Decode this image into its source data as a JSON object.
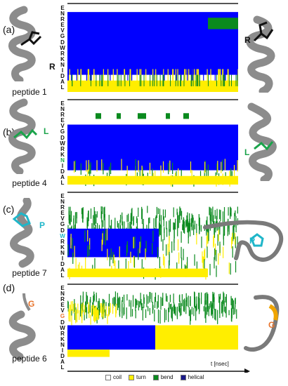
{
  "residues": [
    "E",
    "N",
    "R",
    "E",
    "V",
    "G",
    "D",
    "W",
    "R",
    "K",
    "N",
    "I",
    "D",
    "A",
    "L"
  ],
  "colors": {
    "coil": "#ffffff",
    "turn": "#ffee00",
    "bend": "#0a8a1e",
    "helical": "#0000ff",
    "helix_gray": "#8c8c8c"
  },
  "panels": [
    {
      "letter": "(a)",
      "peptide": "peptide 1",
      "mutation": "R",
      "mutation_color": "#111111",
      "highlight_index": 8
    },
    {
      "letter": "(b)",
      "peptide": "peptide 4",
      "mutation": "L",
      "mutation_color": "#1aa34a",
      "highlight_index": 10
    },
    {
      "letter": "(c)",
      "peptide": "peptide 7",
      "mutation": "P",
      "mutation_color": "#1fb6c9",
      "highlight_index": 7
    },
    {
      "letter": "(d)",
      "peptide": "peptide 6",
      "mutation": "G",
      "mutation_color": "#e8742c",
      "highlight_index": 5
    }
  ],
  "axis": {
    "label": "t [nsec]"
  },
  "legend": [
    {
      "key": "coil",
      "label": "coil",
      "icon": "white-swatch"
    },
    {
      "key": "turn",
      "label": "turn",
      "icon": "yellow-swatch"
    },
    {
      "key": "bend",
      "label": "bend",
      "icon": "green-swatch"
    },
    {
      "key": "helical",
      "label": "helical",
      "icon": "blue-swatch"
    }
  ]
}
